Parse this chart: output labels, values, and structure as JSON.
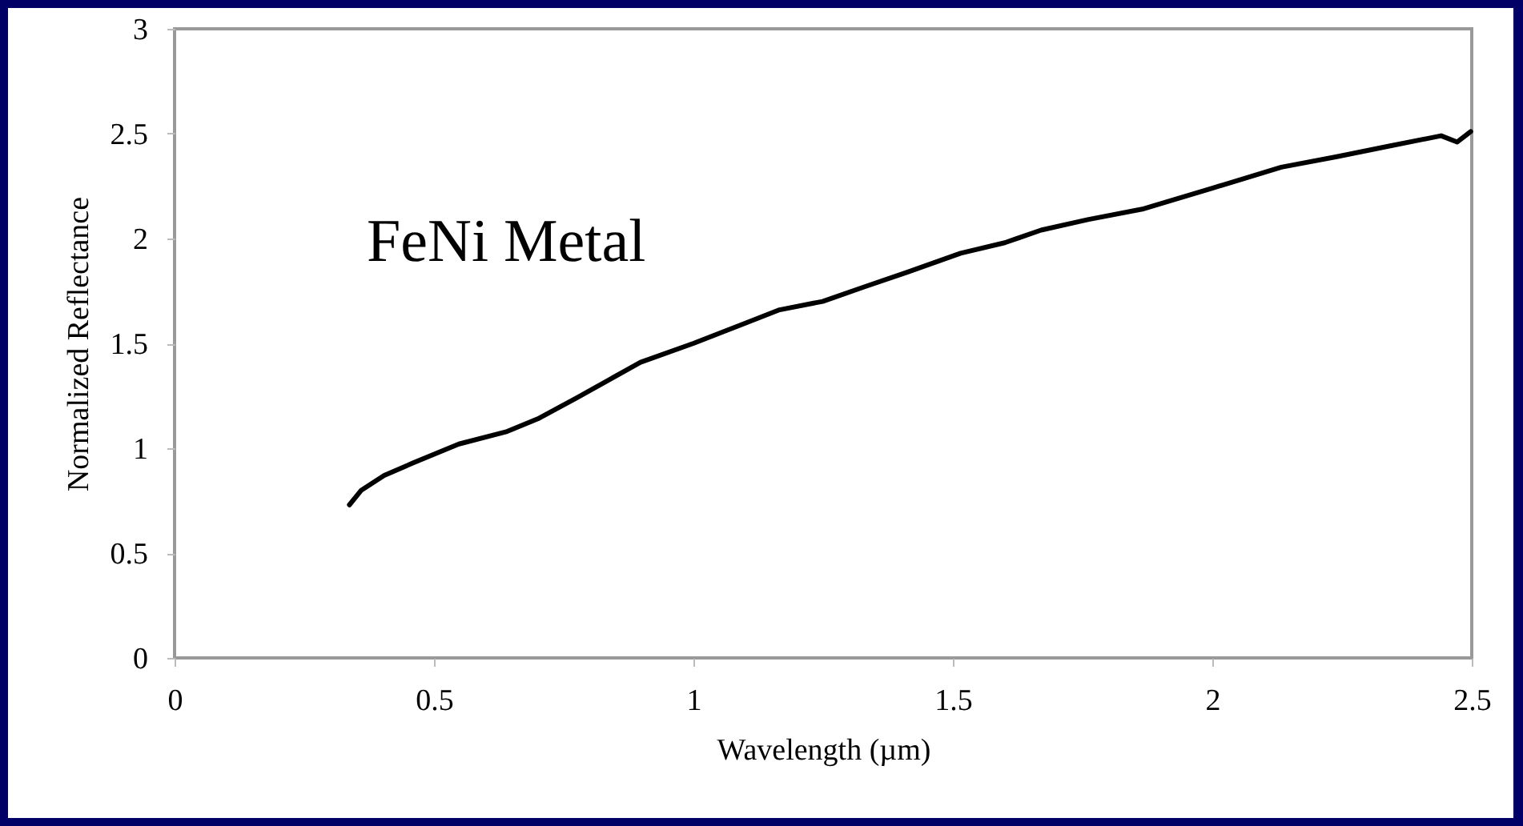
{
  "chart_data": {
    "type": "line",
    "xlabel": "Wavelength (µm)",
    "ylabel": "Normalized Reflectance",
    "annotations": [
      "FeNi Metal"
    ],
    "x": [
      0.337,
      0.36,
      0.404,
      0.46,
      0.548,
      0.641,
      0.7,
      0.775,
      0.84,
      0.898,
      1.0,
      1.104,
      1.166,
      1.249,
      1.33,
      1.413,
      1.515,
      1.6,
      1.67,
      1.76,
      1.865,
      2.0,
      2.133,
      2.24,
      2.339,
      2.441,
      2.472,
      2.498
    ],
    "series": [
      {
        "color": "#000000",
        "values": [
          0.73,
          0.8,
          0.87,
          0.93,
          1.02,
          1.08,
          1.14,
          1.24,
          1.33,
          1.41,
          1.5,
          1.6,
          1.66,
          1.7,
          1.77,
          1.84,
          1.93,
          1.98,
          2.04,
          2.09,
          2.14,
          2.24,
          2.34,
          2.39,
          2.44,
          2.49,
          2.46,
          2.51
        ]
      }
    ],
    "xlim": [
      0,
      2.5
    ],
    "xticks": [
      0,
      0.5,
      1,
      1.5,
      2,
      2.5
    ],
    "ylim": [
      0,
      3
    ],
    "yticks": [
      0,
      0.5,
      1,
      1.5,
      2,
      2.5,
      3
    ],
    "grid": false,
    "marker": "none",
    "line_style": "solid"
  }
}
